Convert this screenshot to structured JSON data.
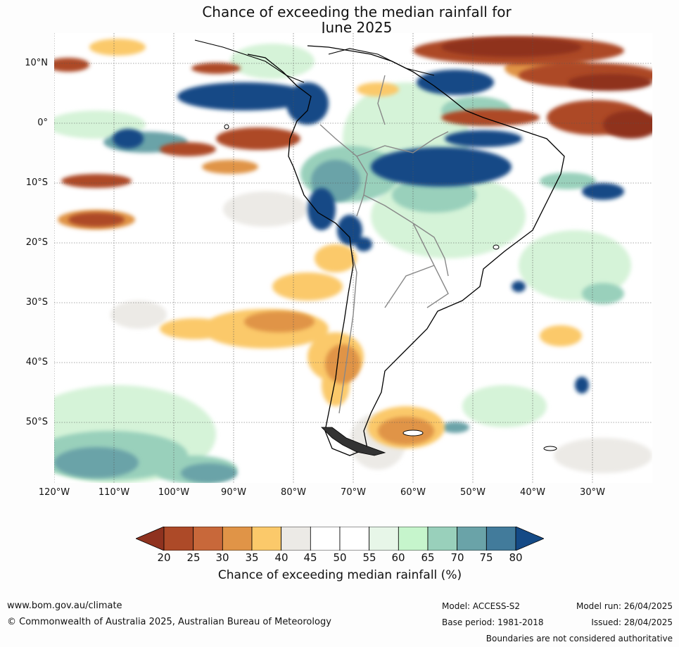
{
  "title": {
    "line1": "Chance of exceeding the median rainfall for",
    "line2": "June 2025"
  },
  "map": {
    "lat_labels": [
      "10°N",
      "0°",
      "10°S",
      "20°S",
      "30°S",
      "40°S",
      "50°S"
    ],
    "lon_labels": [
      "120°W",
      "110°W",
      "100°W",
      "90°W",
      "80°W",
      "70°W",
      "60°W",
      "50°W",
      "40°W",
      "30°W"
    ]
  },
  "colorbar": {
    "label": "Chance of exceeding median rainfall (%)",
    "ticks": [
      "20",
      "25",
      "30",
      "35",
      "40",
      "45",
      "50",
      "55",
      "60",
      "65",
      "70",
      "75",
      "80"
    ],
    "colors": [
      "#8f321f",
      "#ad4a28",
      "#c8683a",
      "#e09447",
      "#fbc96a",
      "#eceae6",
      "#ffffff",
      "#ffffff",
      "#e7f6e8",
      "#c6f5cc",
      "#99d0bb",
      "#6aa3a8",
      "#427b9b",
      "#144a86"
    ]
  },
  "footer": {
    "website": "www.bom.gov.au/climate",
    "copyright": "© Commonwealth of Australia 2025, Australian Bureau of Meteorology",
    "model": "Model: ACCESS-S2",
    "base_period": "Base period: 1981-2018",
    "model_run": "Model run: 26/04/2025",
    "issued": "Issued: 28/04/2025",
    "boundaries": "Boundaries are not considered authoritative"
  }
}
